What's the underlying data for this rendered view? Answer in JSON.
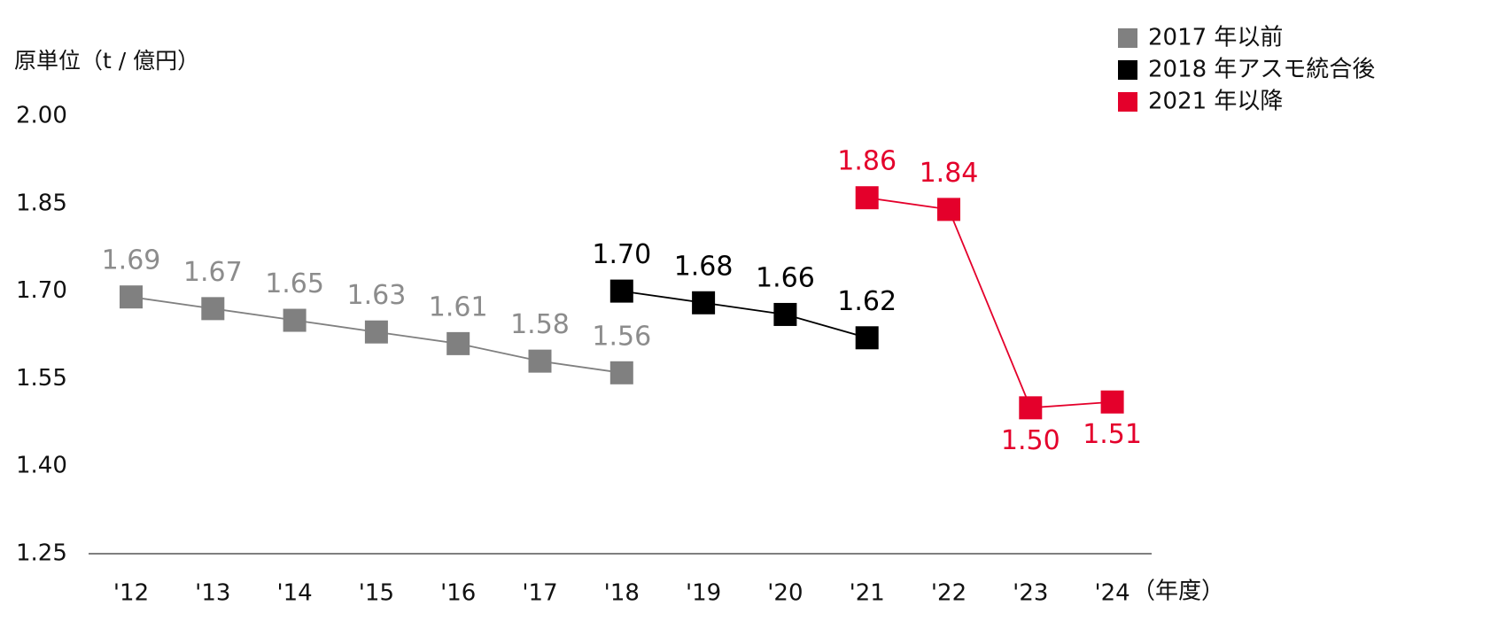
{
  "chart_data": {
    "type": "line",
    "y_axis_label": "原単位（t / 億円）",
    "x_axis_label": "（年度）",
    "categories": [
      "'12",
      "'13",
      "'14",
      "'15",
      "'16",
      "'17",
      "'18",
      "'19",
      "'20",
      "'21",
      "'22",
      "'23",
      "'24"
    ],
    "series": [
      {
        "name": "2017 年以前",
        "color": "#808080",
        "values": [
          1.69,
          1.67,
          1.65,
          1.63,
          1.61,
          1.58,
          1.56,
          null,
          null,
          null,
          null,
          null,
          null
        ],
        "value_labels": [
          "1.69",
          "1.67",
          "1.65",
          "1.63",
          "1.61",
          "1.58",
          "1.56",
          null,
          null,
          null,
          null,
          null,
          null
        ]
      },
      {
        "name": "2018 年アスモ統合後",
        "color": "#000000",
        "values": [
          null,
          null,
          null,
          null,
          null,
          null,
          1.7,
          1.68,
          1.66,
          1.62,
          null,
          null,
          null
        ],
        "value_labels": [
          null,
          null,
          null,
          null,
          null,
          null,
          "1.70",
          "1.68",
          "1.66",
          "1.62",
          null,
          null,
          null
        ]
      },
      {
        "name": "2021 年以降",
        "color": "#e4002b",
        "values": [
          null,
          null,
          null,
          null,
          null,
          null,
          null,
          null,
          null,
          1.86,
          1.84,
          1.5,
          1.51
        ],
        "value_labels": [
          null,
          null,
          null,
          null,
          null,
          null,
          null,
          null,
          null,
          "1.86",
          "1.84",
          "1.50",
          "1.51"
        ]
      }
    ],
    "ylim": [
      1.25,
      2.0
    ],
    "yticks": [
      1.25,
      {
        "value": 1.4,
        "label": "1.40"
      },
      1.55,
      {
        "value": 1.7,
        "label": "1.70"
      },
      1.85,
      {
        "value": 2.0,
        "label": "2.00"
      }
    ],
    "grid": false
  }
}
